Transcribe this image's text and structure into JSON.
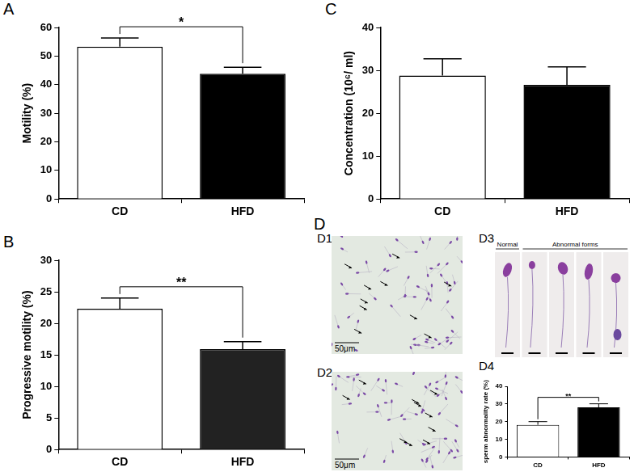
{
  "chart_data": [
    {
      "panel_label": "A",
      "type": "bar",
      "categories": [
        "CD",
        "HFD"
      ],
      "values": [
        53.3,
        43.8
      ],
      "errors": [
        3.0,
        2.3
      ],
      "colors": [
        "#ffffff",
        "#000000"
      ],
      "y_label": "Motility (%)",
      "ylim": [
        0,
        60
      ],
      "yticks": [
        0,
        10,
        20,
        30,
        40,
        50,
        60
      ],
      "grid": false,
      "significance": {
        "label": "*",
        "between": [
          "CD",
          "HFD"
        ]
      }
    },
    {
      "panel_label": "B",
      "type": "bar",
      "categories": [
        "CD",
        "HFD"
      ],
      "values": [
        22.3,
        15.9
      ],
      "errors": [
        1.7,
        1.2
      ],
      "colors": [
        "#ffffff",
        "#222222"
      ],
      "y_label": "Progressive motility (%)",
      "ylim": [
        0,
        30
      ],
      "yticks": [
        0,
        5,
        10,
        15,
        20,
        25,
        30
      ],
      "grid": false,
      "significance": {
        "label": "**",
        "between": [
          "CD",
          "HFD"
        ]
      }
    },
    {
      "panel_label": "C",
      "type": "bar",
      "categories": [
        "CD",
        "HFD"
      ],
      "values": [
        28.8,
        26.6
      ],
      "errors": [
        3.9,
        4.2
      ],
      "colors": [
        "#ffffff",
        "#000000"
      ],
      "y_label": "Concentration (10⁶/ ml)",
      "ylim": [
        0,
        40
      ],
      "yticks": [
        0,
        10,
        20,
        30,
        40
      ],
      "grid": false
    },
    {
      "panel_label": "D4",
      "type": "bar",
      "categories": [
        "CD",
        "HFD"
      ],
      "values": [
        18.2,
        28.1
      ],
      "errors": [
        1.8,
        2.0
      ],
      "colors": [
        "#ffffff",
        "#000000"
      ],
      "y_label": "sperm abnormality rate (%)",
      "ylim": [
        0,
        40
      ],
      "yticks": [
        0,
        10,
        20,
        30,
        40
      ],
      "grid": false,
      "significance": {
        "label": "**",
        "between": [
          "CD",
          "HFD"
        ]
      }
    }
  ],
  "figure": {
    "panel_label": "D",
    "micrographs": [
      {
        "panel_label": "D1",
        "scale_bar": "50μm"
      },
      {
        "panel_label": "D2",
        "scale_bar": "50μm"
      }
    ],
    "morphology": {
      "panel_label": "D3",
      "normal": "Normal",
      "abnormal": "Abnormal forms"
    }
  }
}
